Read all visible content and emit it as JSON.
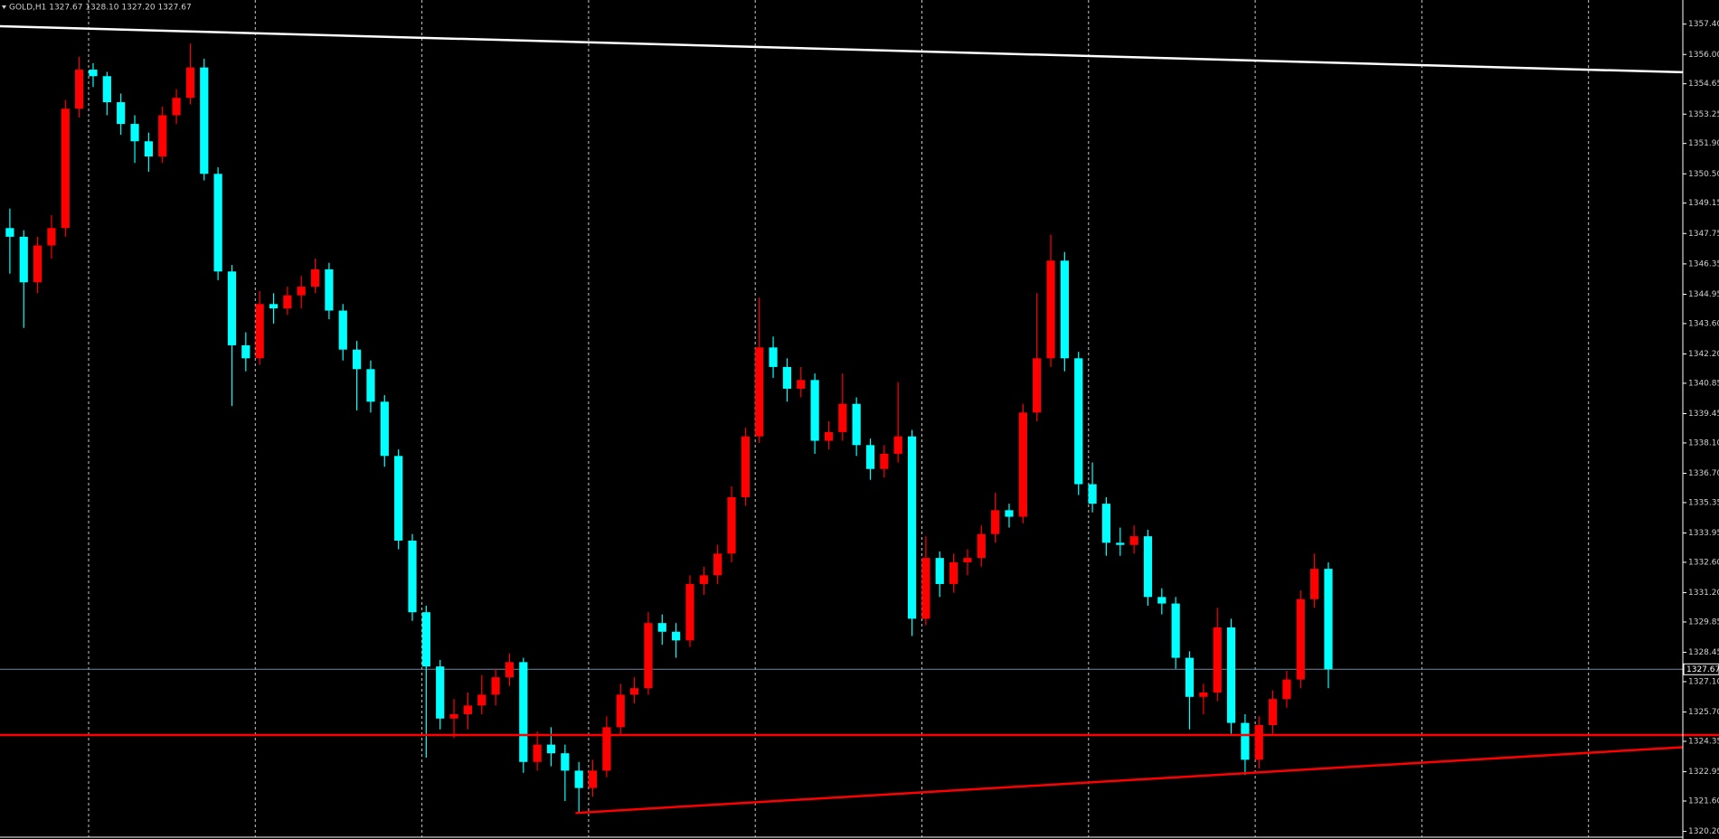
{
  "chart_data": {
    "type": "candlestick",
    "title": "GOLD,H1  1327.67 1328.10 1327.20 1327.67",
    "bull_color": "#ff0000",
    "bear_color": "#00ffff",
    "ohlc": [
      [
        1348.0,
        1348.9,
        1345.9,
        1347.6
      ],
      [
        1347.6,
        1347.9,
        1343.4,
        1345.5
      ],
      [
        1345.5,
        1347.6,
        1345.0,
        1347.2
      ],
      [
        1347.2,
        1348.6,
        1346.6,
        1348.0
      ],
      [
        1348.0,
        1353.9,
        1347.6,
        1353.5
      ],
      [
        1353.5,
        1355.9,
        1353.1,
        1355.3
      ],
      [
        1355.3,
        1355.6,
        1354.5,
        1355.0
      ],
      [
        1355.0,
        1355.2,
        1353.2,
        1353.8
      ],
      [
        1353.8,
        1354.2,
        1352.3,
        1352.8
      ],
      [
        1352.8,
        1353.2,
        1351.0,
        1352.0
      ],
      [
        1352.0,
        1352.4,
        1350.6,
        1351.3
      ],
      [
        1351.3,
        1353.6,
        1351.0,
        1353.2
      ],
      [
        1353.2,
        1354.4,
        1352.8,
        1354.0
      ],
      [
        1354.0,
        1356.5,
        1353.7,
        1355.4
      ],
      [
        1355.4,
        1355.8,
        1350.2,
        1350.5
      ],
      [
        1350.5,
        1350.8,
        1345.6,
        1346.0
      ],
      [
        1346.0,
        1346.3,
        1339.8,
        1342.6
      ],
      [
        1342.6,
        1343.2,
        1341.4,
        1342.0
      ],
      [
        1342.0,
        1345.1,
        1341.7,
        1344.5
      ],
      [
        1344.5,
        1345.0,
        1343.6,
        1344.3
      ],
      [
        1344.3,
        1345.3,
        1344.0,
        1344.9
      ],
      [
        1344.9,
        1345.8,
        1344.3,
        1345.3
      ],
      [
        1345.3,
        1346.6,
        1345.0,
        1346.1
      ],
      [
        1346.1,
        1346.4,
        1343.8,
        1344.2
      ],
      [
        1344.2,
        1344.5,
        1341.9,
        1342.4
      ],
      [
        1342.4,
        1342.8,
        1339.6,
        1341.5
      ],
      [
        1341.5,
        1341.9,
        1339.5,
        1340.0
      ],
      [
        1340.0,
        1340.3,
        1337.0,
        1337.5
      ],
      [
        1337.5,
        1337.8,
        1333.2,
        1333.6
      ],
      [
        1333.6,
        1333.9,
        1329.9,
        1330.3
      ],
      [
        1330.3,
        1330.6,
        1323.6,
        1327.8
      ],
      [
        1327.8,
        1328.1,
        1324.9,
        1325.4
      ],
      [
        1325.4,
        1326.3,
        1324.5,
        1325.6
      ],
      [
        1325.6,
        1326.6,
        1324.9,
        1326.0
      ],
      [
        1326.0,
        1327.4,
        1325.6,
        1326.5
      ],
      [
        1326.5,
        1327.7,
        1326.0,
        1327.3
      ],
      [
        1327.3,
        1328.4,
        1326.9,
        1328.0
      ],
      [
        1328.0,
        1328.2,
        1322.9,
        1323.4
      ],
      [
        1323.4,
        1324.8,
        1323.0,
        1324.2
      ],
      [
        1324.2,
        1325.0,
        1323.2,
        1323.8
      ],
      [
        1323.8,
        1324.2,
        1321.6,
        1323.0
      ],
      [
        1323.0,
        1323.4,
        1321.1,
        1322.2
      ],
      [
        1322.2,
        1323.5,
        1321.8,
        1323.0
      ],
      [
        1323.0,
        1325.5,
        1322.7,
        1325.0
      ],
      [
        1325.0,
        1327.0,
        1324.6,
        1326.5
      ],
      [
        1326.5,
        1327.3,
        1326.1,
        1326.8
      ],
      [
        1326.8,
        1330.3,
        1326.5,
        1329.8
      ],
      [
        1329.8,
        1330.2,
        1328.8,
        1329.4
      ],
      [
        1329.4,
        1329.8,
        1328.2,
        1329.0
      ],
      [
        1329.0,
        1332.0,
        1328.7,
        1331.6
      ],
      [
        1331.6,
        1332.4,
        1331.1,
        1332.0
      ],
      [
        1332.0,
        1333.4,
        1331.6,
        1333.0
      ],
      [
        1333.0,
        1336.1,
        1332.6,
        1335.6
      ],
      [
        1335.6,
        1338.8,
        1335.2,
        1338.4
      ],
      [
        1338.4,
        1344.8,
        1338.1,
        1342.5
      ],
      [
        1342.5,
        1343.0,
        1341.1,
        1341.6
      ],
      [
        1341.6,
        1342.0,
        1340.0,
        1340.6
      ],
      [
        1340.6,
        1341.6,
        1340.2,
        1341.0
      ],
      [
        1341.0,
        1341.3,
        1337.6,
        1338.2
      ],
      [
        1338.2,
        1339.1,
        1337.8,
        1338.6
      ],
      [
        1338.6,
        1341.3,
        1338.2,
        1339.9
      ],
      [
        1339.9,
        1340.2,
        1337.5,
        1338.0
      ],
      [
        1338.0,
        1338.3,
        1336.4,
        1336.9
      ],
      [
        1336.9,
        1338.0,
        1336.5,
        1337.6
      ],
      [
        1337.6,
        1340.9,
        1337.2,
        1338.4
      ],
      [
        1338.4,
        1338.7,
        1329.2,
        1330.0
      ],
      [
        1330.0,
        1333.8,
        1329.7,
        1332.8
      ],
      [
        1332.8,
        1333.1,
        1331.0,
        1331.6
      ],
      [
        1331.6,
        1333.0,
        1331.2,
        1332.6
      ],
      [
        1332.6,
        1333.2,
        1332.0,
        1332.8
      ],
      [
        1332.8,
        1334.3,
        1332.4,
        1333.9
      ],
      [
        1333.9,
        1335.8,
        1333.5,
        1335.0
      ],
      [
        1335.0,
        1335.3,
        1334.2,
        1334.7
      ],
      [
        1334.7,
        1339.9,
        1334.4,
        1339.5
      ],
      [
        1339.5,
        1345.0,
        1339.1,
        1342.0
      ],
      [
        1342.0,
        1347.7,
        1341.6,
        1346.5
      ],
      [
        1346.5,
        1346.9,
        1341.4,
        1342.0
      ],
      [
        1342.0,
        1342.3,
        1335.7,
        1336.2
      ],
      [
        1336.2,
        1337.2,
        1334.9,
        1335.3
      ],
      [
        1335.3,
        1335.6,
        1332.9,
        1333.5
      ],
      [
        1333.5,
        1334.2,
        1332.9,
        1333.4
      ],
      [
        1333.4,
        1334.3,
        1333.0,
        1333.8
      ],
      [
        1333.8,
        1334.1,
        1330.6,
        1331.0
      ],
      [
        1331.0,
        1331.4,
        1330.2,
        1330.7
      ],
      [
        1330.7,
        1331.0,
        1327.7,
        1328.2
      ],
      [
        1328.2,
        1328.5,
        1324.9,
        1326.4
      ],
      [
        1326.4,
        1327.0,
        1325.6,
        1326.6
      ],
      [
        1326.6,
        1330.5,
        1326.2,
        1329.6
      ],
      [
        1329.6,
        1330.0,
        1324.7,
        1325.2
      ],
      [
        1325.2,
        1325.6,
        1322.8,
        1323.5
      ],
      [
        1323.5,
        1325.5,
        1323.1,
        1325.1
      ],
      [
        1325.1,
        1326.7,
        1324.7,
        1326.3
      ],
      [
        1326.3,
        1327.6,
        1325.9,
        1327.2
      ],
      [
        1327.2,
        1331.3,
        1326.8,
        1330.9
      ],
      [
        1330.9,
        1333.0,
        1330.5,
        1332.3
      ],
      [
        1332.3,
        1332.6,
        1326.8,
        1327.67
      ]
    ],
    "xlim": [
      -0.71,
      120.54
    ],
    "ylim": [
      1319.85,
      1358.51
    ],
    "yticks": [
      {
        "value": 1357.4,
        "label": "1357.40"
      },
      {
        "value": 1356.0,
        "label": "1356.00"
      },
      {
        "value": 1354.65,
        "label": "1354.65"
      },
      {
        "value": 1353.25,
        "label": "1353.25"
      },
      {
        "value": 1351.9,
        "label": "1351.90"
      },
      {
        "value": 1350.5,
        "label": "1350.50"
      },
      {
        "value": 1349.15,
        "label": "1349.15"
      },
      {
        "value": 1347.75,
        "label": "1347.75"
      },
      {
        "value": 1346.35,
        "label": "1346.35"
      },
      {
        "value": 1344.95,
        "label": "1344.95"
      },
      {
        "value": 1343.6,
        "label": "1343.60"
      },
      {
        "value": 1342.2,
        "label": "1342.20"
      },
      {
        "value": 1340.85,
        "label": "1340.85"
      },
      {
        "value": 1339.45,
        "label": "1339.45"
      },
      {
        "value": 1338.1,
        "label": "1338.10"
      },
      {
        "value": 1336.7,
        "label": "1336.70"
      },
      {
        "value": 1335.35,
        "label": "1335.35"
      },
      {
        "value": 1333.95,
        "label": "1333.95"
      },
      {
        "value": 1332.6,
        "label": "1332.60"
      },
      {
        "value": 1331.2,
        "label": "1331.20"
      },
      {
        "value": 1329.85,
        "label": "1329.85"
      },
      {
        "value": 1328.45,
        "label": "1328.45"
      },
      {
        "value": 1327.1,
        "label": "1327.10"
      },
      {
        "value": 1325.7,
        "label": "1325.70"
      },
      {
        "value": 1324.35,
        "label": "1324.35"
      },
      {
        "value": 1322.95,
        "label": "1322.95"
      },
      {
        "value": 1321.6,
        "label": "1321.60"
      },
      {
        "value": 1320.2,
        "label": "1320.20"
      }
    ],
    "last_price": 1327.67,
    "hlines": [
      {
        "color": "#ff0000",
        "value": 1324.64
      }
    ],
    "lines": [
      {
        "color": "#ffffff",
        "x": [
          -0.71,
          120.54
        ],
        "y": [
          1357.3,
          1355.18
        ]
      },
      {
        "color": "#ff0000",
        "x": [
          40.76,
          120.54
        ],
        "y": [
          1321.05,
          1324.08
        ]
      }
    ]
  }
}
